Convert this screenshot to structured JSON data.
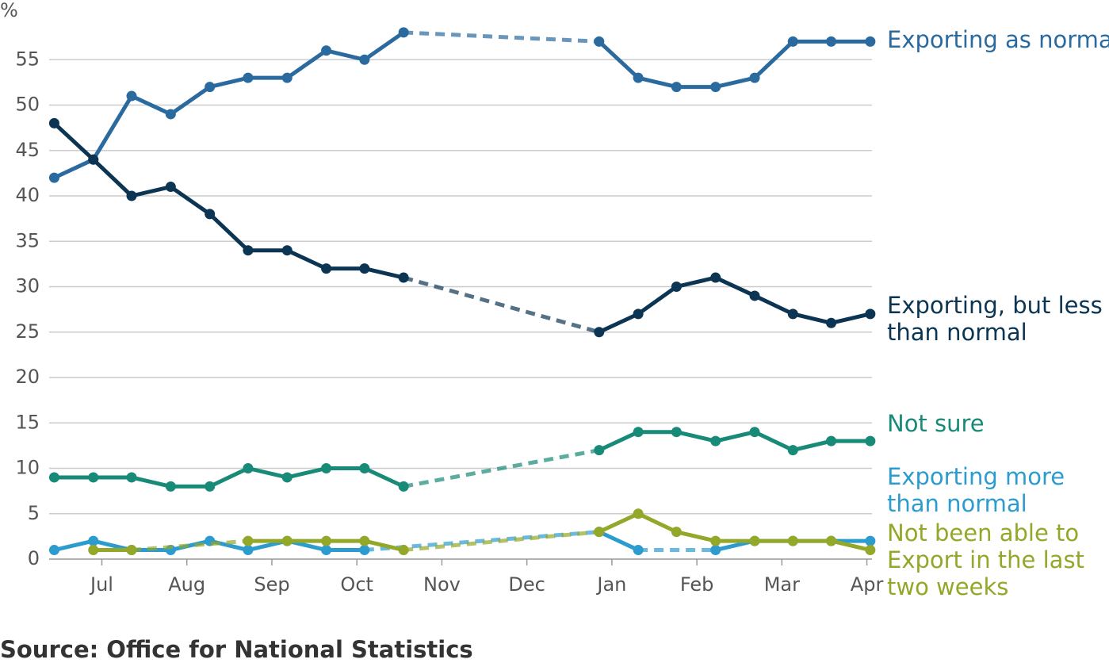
{
  "chart_data": {
    "type": "line",
    "ylabel": "%",
    "source": "Source: Office for National Statistics",
    "x": [
      6.44,
      6.9,
      7.35,
      7.81,
      8.27,
      8.72,
      9.18,
      9.64,
      10.09,
      10.55,
      12.85,
      13.31,
      13.76,
      14.22,
      14.68,
      15.13,
      15.58,
      16.04
    ],
    "xlim": [
      6.38,
      16.06
    ],
    "xticks": [
      {
        "value": 7,
        "label": "Jul"
      },
      {
        "value": 8,
        "label": "Aug"
      },
      {
        "value": 9,
        "label": "Sep"
      },
      {
        "value": 10,
        "label": "Oct"
      },
      {
        "value": 11,
        "label": "Nov"
      },
      {
        "value": 12,
        "label": "Dec"
      },
      {
        "value": 13,
        "label": "Jan"
      },
      {
        "value": 14,
        "label": "Feb"
      },
      {
        "value": 15,
        "label": "Mar"
      },
      {
        "value": 16,
        "label": "Apr"
      }
    ],
    "ylim": [
      0,
      60
    ],
    "yticks": [
      0,
      5,
      10,
      15,
      20,
      25,
      30,
      35,
      40,
      45,
      50,
      55
    ],
    "grid": true,
    "series": [
      {
        "name": "Exporting as normal",
        "color": "#2a6a9e",
        "values": [
          42,
          44,
          51,
          49,
          52,
          53,
          53,
          56,
          55,
          58,
          57,
          53,
          52,
          52,
          53,
          57,
          57,
          57
        ]
      },
      {
        "name": "Exporting, but less than normal",
        "color": "#0b3552",
        "values": [
          48,
          44,
          40,
          41,
          38,
          34,
          34,
          32,
          32,
          31,
          25,
          27,
          30,
          31,
          29,
          27,
          26,
          27
        ]
      },
      {
        "name": "Not sure",
        "color": "#178a78",
        "values": [
          9,
          9,
          9,
          8,
          8,
          10,
          9,
          10,
          10,
          8,
          12,
          14,
          14,
          13,
          14,
          12,
          13,
          13
        ]
      },
      {
        "name": "Exporting more than normal",
        "color": "#2c9ccf",
        "values": [
          1,
          2,
          1,
          1,
          2,
          1,
          2,
          1,
          1,
          null,
          3,
          1,
          null,
          1,
          2,
          2,
          2,
          2
        ]
      },
      {
        "name": "Not been able to Export in the last two weeks",
        "color": "#93a828",
        "values": [
          null,
          1,
          1,
          null,
          null,
          2,
          2,
          2,
          2,
          1,
          3,
          5,
          3,
          2,
          2,
          2,
          2,
          1
        ]
      }
    ]
  }
}
